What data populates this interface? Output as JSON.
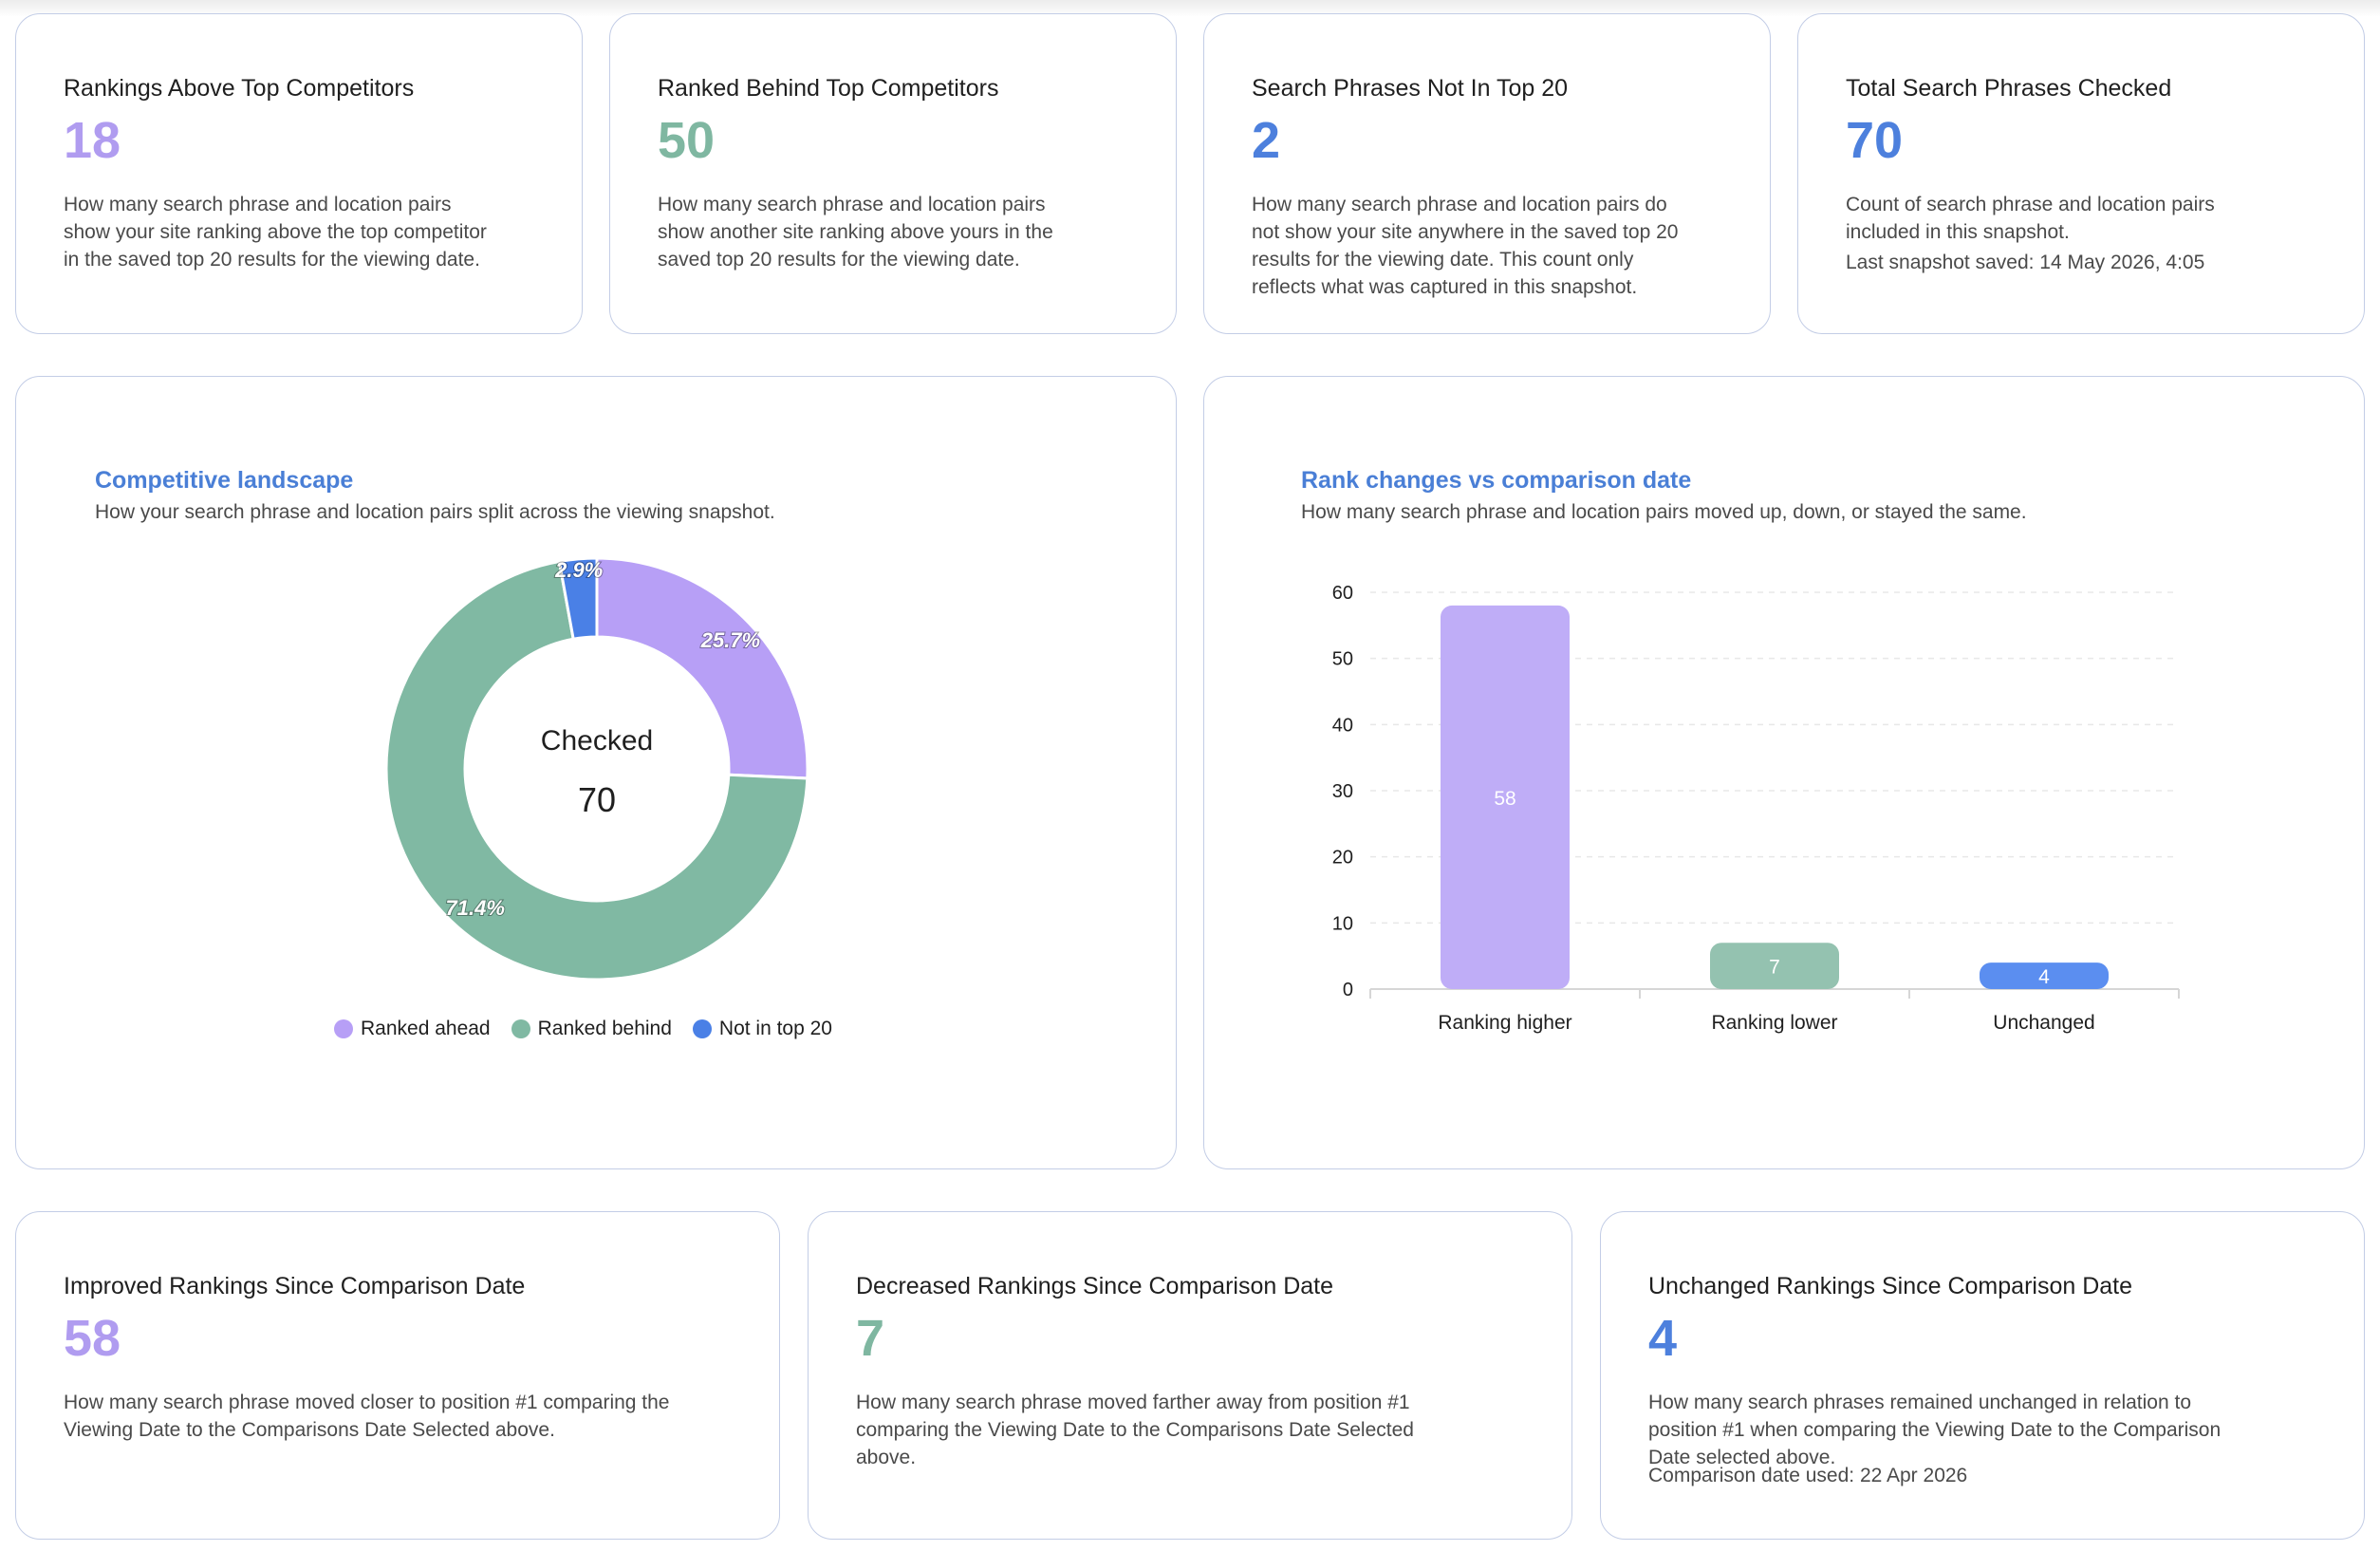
{
  "colors": {
    "ahead": "#b79ff6",
    "behind": "#80b9a3",
    "not_top20": "#4a80e6",
    "bar_higher": "#bfadf7",
    "bar_lower": "#94c2b0",
    "bar_unchanged": "#5b8ef0",
    "grid": "#e8e8e8"
  },
  "top_stats": [
    {
      "title": "Rankings Above Top Competitors",
      "value": "18",
      "desc_lines": [
        "How many search phrase and location pairs",
        "show your site ranking above the top competitor",
        "in the saved top 20 results for the viewing date."
      ]
    },
    {
      "title": "Ranked Behind Top Competitors",
      "value": "50",
      "desc_lines": [
        "How many search phrase and location pairs",
        "show another site ranking above yours in the",
        "saved top 20 results for the viewing date."
      ]
    },
    {
      "title": "Search Phrases Not In Top 20",
      "value": "2",
      "desc_lines": [
        "How many search phrase and location pairs do",
        "not show your site anywhere in the saved top 20",
        "results for the viewing date. This count only",
        "reflects what was captured in this snapshot."
      ]
    },
    {
      "title": "Total Search Phrases Checked",
      "value": "70",
      "desc_lines": [
        "Count of search phrase and location pairs",
        "included in this snapshot."
      ],
      "extra": "Last snapshot saved: 14 May 2026, 4:05"
    }
  ],
  "bottom_stats": [
    {
      "title": "Improved Rankings Since Comparison Date",
      "value": "58",
      "desc_lines": [
        "How many search phrase moved closer to position #1 comparing the",
        "Viewing Date to the Comparisons Date Selected above."
      ]
    },
    {
      "title": "Decreased Rankings Since Comparison Date",
      "value": "7",
      "desc_lines": [
        "How many search phrase moved farther away from position #1",
        "comparing the Viewing Date to the Comparisons Date Selected",
        "above."
      ]
    },
    {
      "title": "Unchanged Rankings Since Comparison Date",
      "value": "4",
      "desc_lines": [
        "How many search phrases remained unchanged in relation to",
        "position #1 when comparing the Viewing Date to the Comparison",
        "Date selected above."
      ],
      "extra": "Comparison date used: 22 Apr 2026"
    }
  ],
  "landscape": {
    "title": "Competitive landscape",
    "subtitle": "How your search phrase and location pairs split across the viewing snapshot."
  },
  "rank_changes": {
    "title": "Rank changes vs comparison date",
    "subtitle": "How many search phrase and location pairs moved up, down, or stayed the same."
  },
  "chart_data": [
    {
      "type": "pie",
      "variant": "donut",
      "title": "Competitive landscape",
      "center_label": "Checked",
      "center_value": "70",
      "labels": [
        "Ranked ahead",
        "Ranked behind",
        "Not in top 20"
      ],
      "values": [
        18,
        50,
        2
      ],
      "percent_labels": [
        "25.7%",
        "71.4%",
        "2.9%"
      ],
      "legend": "bottom"
    },
    {
      "type": "bar",
      "title": "Rank changes vs comparison date",
      "categories": [
        "Ranking higher",
        "Ranking lower",
        "Unchanged"
      ],
      "values": [
        58,
        7,
        4
      ],
      "ylim": [
        0,
        60
      ],
      "yticks": [
        0,
        10,
        20,
        30,
        40,
        50,
        60
      ],
      "grid": true,
      "data_labels": true
    }
  ]
}
